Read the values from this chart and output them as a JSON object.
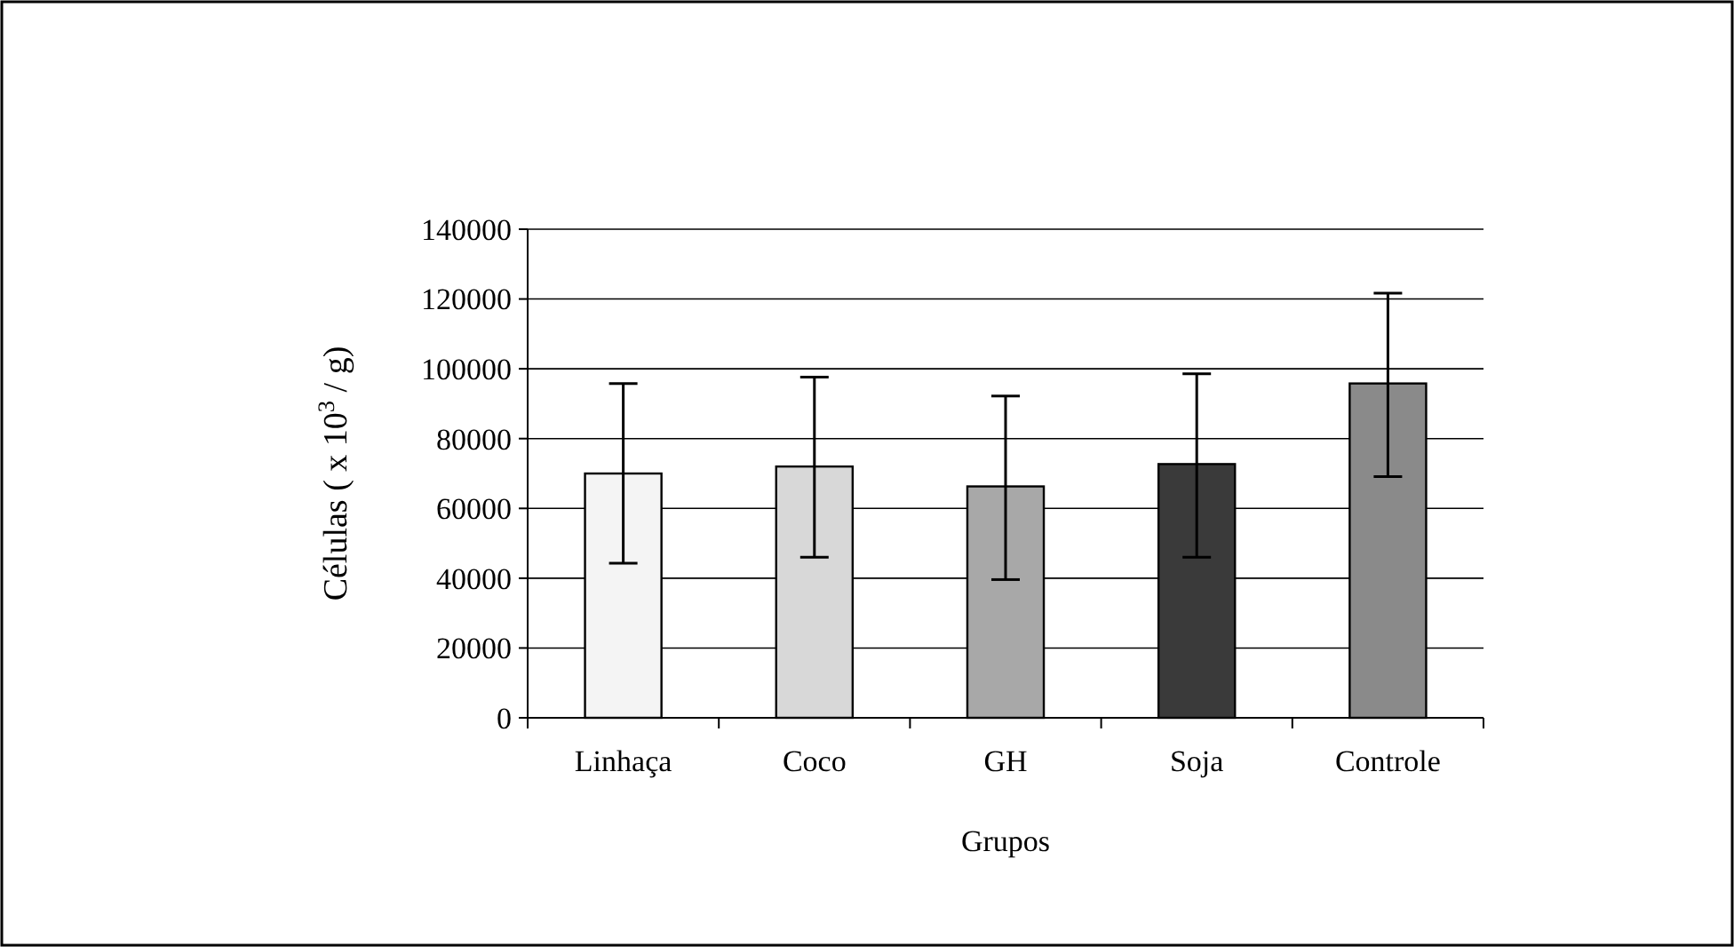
{
  "chart_data": {
    "type": "bar",
    "xlabel": "Grupos",
    "ylabel": "Células ( x 10$^{3}$ / g)",
    "categories": [
      "Linhaça",
      "Coco",
      "GH",
      "Soja",
      "Controle"
    ],
    "values": [
      70000,
      72000,
      66300,
      72700,
      95800
    ],
    "errors": [
      [
        44300,
        95800
      ],
      [
        46000,
        97600
      ],
      [
        39600,
        92200
      ],
      [
        46000,
        98600
      ],
      [
        69100,
        121700
      ]
    ],
    "colors": [
      "#f4f4f4",
      "#d8d8d8",
      "#a8a8a8",
      "#3a3a3a",
      "#8a8a8a"
    ],
    "ylim": [
      0,
      140000
    ],
    "yticks": [
      0,
      20000,
      40000,
      60000,
      80000,
      100000,
      120000,
      140000
    ],
    "grid": "y"
  }
}
